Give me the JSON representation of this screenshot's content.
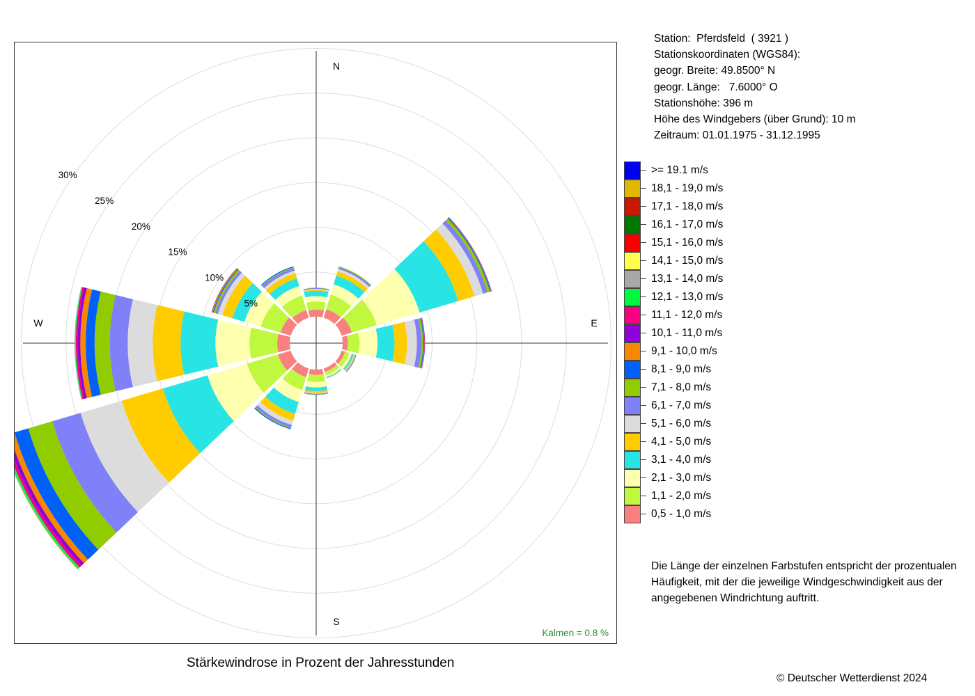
{
  "info": {
    "station": "Station:  Pferdsfeld  ( 3921 )",
    "coords_title": "Stationskoordinaten (WGS84):",
    "lat": "geogr. Breite: 49.8500° N",
    "lon": "geogr. Länge:   7.6000° O",
    "height": "Stationshöhe: 396 m",
    "sensor": "Höhe des Windgebers (über Grund): 10 m",
    "period": "Zeitraum: 01.01.1975 - 31.12.1995"
  },
  "note": "Die Länge der einzelnen Farbstufen entspricht der prozentualen Häufigkeit, mit der die jeweilige Windgeschwindigkeit aus der angegebenen Windrichtung auftritt.",
  "caption": "Stärkewindrose in Prozent der Jahresstunden",
  "copyright": "© Deutscher Wetterdienst  2024",
  "calm": "Kalmen  =  0.8 %",
  "chart_data": {
    "type": "polar-stacked-bar",
    "title": "Stärkewindrose in Prozent der Jahresstunden",
    "direction_labels": {
      "N": "N",
      "E": "E",
      "S": "S",
      "W": "W"
    },
    "ring_labels": [
      "5%",
      "10%",
      "15%",
      "20%",
      "25%",
      "30%"
    ],
    "rings": [
      5,
      10,
      15,
      20,
      25,
      30
    ],
    "calm_percent": 0.8,
    "directions_deg": [
      0,
      30,
      60,
      90,
      120,
      150,
      180,
      210,
      240,
      270,
      300,
      330
    ],
    "classes": [
      {
        "label": "0,5 - 1,0 m/s",
        "color": "#f88080"
      },
      {
        "label": "1,1 - 2,0 m/s",
        "color": "#c0f840"
      },
      {
        "label": "2,1 - 3,0 m/s",
        "color": "#ffffb0"
      },
      {
        "label": "3,1 - 4,0 m/s",
        "color": "#28e4e4"
      },
      {
        "label": "4,1 - 5,0 m/s",
        "color": "#ffcc00"
      },
      {
        "label": "5,1 - 6,0 m/s",
        "color": "#dcdcdc"
      },
      {
        "label": "6,1 - 7,0 m/s",
        "color": "#8080f8"
      },
      {
        "label": "7,1 - 8,0 m/s",
        "color": "#90cc00"
      },
      {
        "label": "8,1 - 9,0 m/s",
        "color": "#0060f8"
      },
      {
        "label": "9,1 - 10,0 m/s",
        "color": "#f88800"
      },
      {
        "label": "10,1 - 11,0 m/s",
        "color": "#9000d8"
      },
      {
        "label": "11,1 - 12,0 m/s",
        "color": "#f80080"
      },
      {
        "label": "12,1 - 13,0 m/s",
        "color": "#00f840"
      },
      {
        "label": "13,1 - 14,0 m/s",
        "color": "#a8a8a8"
      },
      {
        "label": "14,1 - 15,0 m/s",
        "color": "#ffff50"
      },
      {
        "label": "15,1 - 16,0 m/s",
        "color": "#f80000"
      },
      {
        "label": "16,1 - 17,0 m/s",
        "color": "#007800"
      },
      {
        "label": "17,1 - 18,0 m/s",
        "color": "#c81800"
      },
      {
        "label": "18,1 - 19,0 m/s",
        "color": "#e0b800"
      },
      {
        "label": ">= 19.1 m/s",
        "color": "#0000f0"
      }
    ],
    "series": [
      {
        "dir": 0,
        "values": [
          0.8,
          0.9,
          0.6,
          0.6,
          0.1,
          0.1,
          0.1,
          0.05
        ]
      },
      {
        "dir": 30,
        "values": [
          1.0,
          1.7,
          1.2,
          1.0,
          0.5,
          0.3,
          0.2,
          0.1
        ]
      },
      {
        "dir": 60,
        "values": [
          1.2,
          2.9,
          5.0,
          4.5,
          1.9,
          1.0,
          0.5,
          0.3,
          0.1,
          0.05,
          0.05
        ]
      },
      {
        "dir": 90,
        "values": [
          0.6,
          1.3,
          2.0,
          1.9,
          1.4,
          1.1,
          0.5,
          0.2,
          0.1,
          0.05,
          0.05
        ]
      },
      {
        "dir": 120,
        "values": [
          0.4,
          0.5,
          0.3,
          0.2,
          0.1,
          0.1,
          0.1,
          0.05
        ]
      },
      {
        "dir": 150,
        "values": [
          0.4,
          0.4,
          0.2,
          0.1,
          0.05,
          0.05
        ]
      },
      {
        "dir": 180,
        "values": [
          0.6,
          0.8,
          0.6,
          0.4,
          0.2,
          0.1,
          0.1,
          0.05
        ]
      },
      {
        "dir": 210,
        "values": [
          1.0,
          1.5,
          1.4,
          1.4,
          0.8,
          0.5,
          0.3,
          0.1,
          0.1
        ]
      },
      {
        "dir": 240,
        "values": [
          1.5,
          3.6,
          4.6,
          5.2,
          4.8,
          4.8,
          3.3,
          2.8,
          1.6,
          0.6,
          0.4,
          0.3,
          0.2,
          0.1,
          0.05
        ]
      },
      {
        "dir": 270,
        "values": [
          1.4,
          3.1,
          3.8,
          3.9,
          3.1,
          2.8,
          2.0,
          1.7,
          1.0,
          0.6,
          0.3,
          0.2,
          0.1,
          0.05
        ]
      },
      {
        "dir": 300,
        "values": [
          1.2,
          2.3,
          1.9,
          1.4,
          1.2,
          0.5,
          0.3,
          0.2,
          0.1,
          0.1,
          0.05
        ]
      },
      {
        "dir": 330,
        "values": [
          0.9,
          1.7,
          1.1,
          0.9,
          0.6,
          0.3,
          0.3,
          0.1,
          0.1
        ]
      }
    ]
  }
}
